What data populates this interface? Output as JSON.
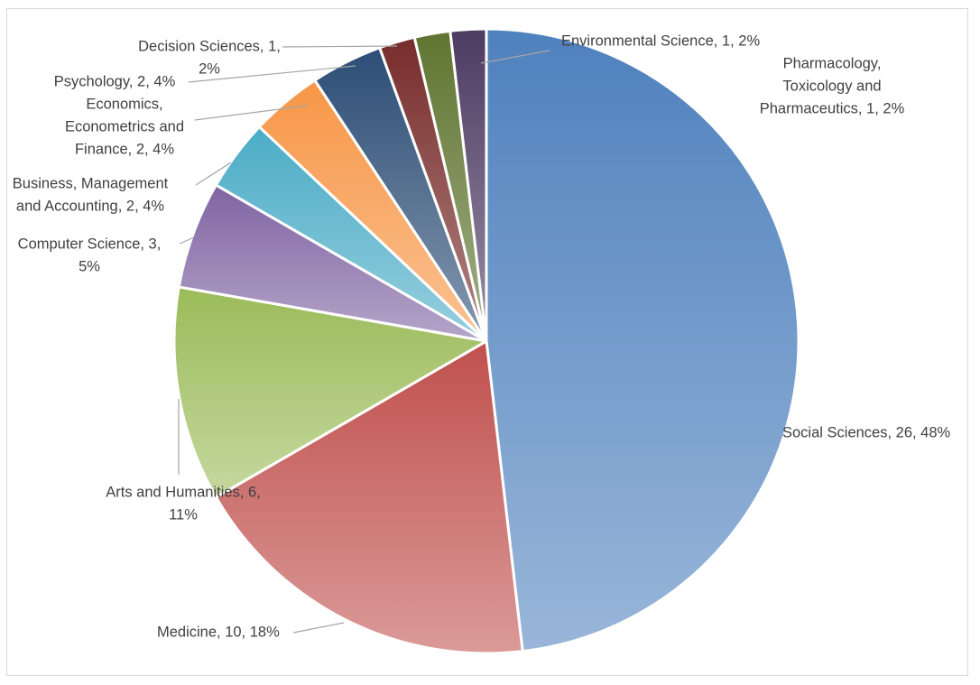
{
  "chart_data": {
    "type": "pie",
    "title": "",
    "legend": "none",
    "series": [
      {
        "name": "Social Sciences",
        "value": 26,
        "percent": "48%",
        "color": "#4f81bd",
        "label_lines": [
          "Social Sciences, 26, 48%"
        ]
      },
      {
        "name": "Medicine",
        "value": 10,
        "percent": "18%",
        "color": "#c0504d",
        "label_lines": [
          "Medicine, 10, 18%"
        ]
      },
      {
        "name": "Arts and Humanities",
        "value": 6,
        "percent": "11%",
        "color": "#9bbb59",
        "label_lines": [
          "Arts and Humanities, 6,",
          "11%"
        ]
      },
      {
        "name": "Computer Science",
        "value": 3,
        "percent": "5%",
        "color": "#8064a2",
        "label_lines": [
          "Computer Science, 3,",
          "5%"
        ]
      },
      {
        "name": "Business, Management and Accounting",
        "value": 2,
        "percent": "4%",
        "color": "#4bacc6",
        "label_lines": [
          "Business, Management",
          "and Accounting, 2, 4%"
        ]
      },
      {
        "name": "Economics, Econometrics and Finance",
        "value": 2,
        "percent": "4%",
        "color": "#f79646",
        "label_lines": [
          "Economics,",
          "Econometrics and",
          "Finance, 2, 4%"
        ]
      },
      {
        "name": "Psychology",
        "value": 2,
        "percent": "4%",
        "color": "#2c4d75",
        "label_lines": [
          "Psychology, 2, 4%"
        ]
      },
      {
        "name": "Decision Sciences",
        "value": 1,
        "percent": "2%",
        "color": "#772c2a",
        "label_lines": [
          "Decision Sciences, 1,",
          "2%"
        ]
      },
      {
        "name": "Environmental Science",
        "value": 1,
        "percent": "2%",
        "color": "#5f7530",
        "label_lines": [
          "Environmental Science, 1, 2%"
        ]
      },
      {
        "name": "Pharmacology, Toxicology and Pharmaceutics",
        "value": 1,
        "percent": "2%",
        "color": "#4d3b62",
        "label_lines": [
          "Pharmacology,",
          "Toxicology and",
          "Pharmaceutics, 1, 2%"
        ]
      }
    ]
  }
}
